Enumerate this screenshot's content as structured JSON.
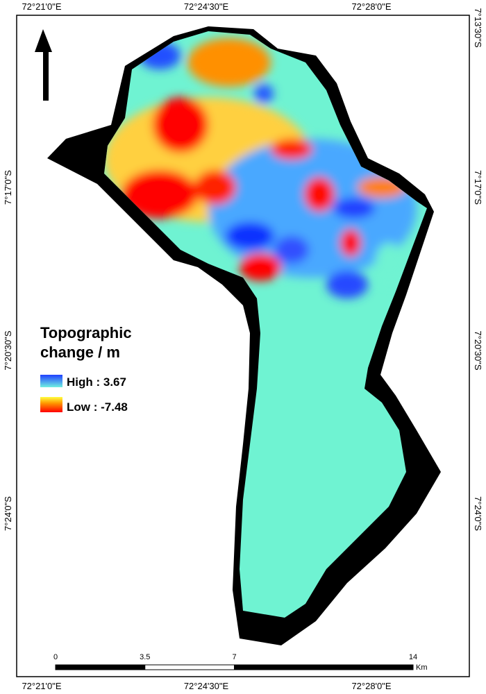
{
  "coordinates": {
    "top": [
      "72°21'0\"E",
      "72°24'30\"E",
      "72°28'0\"E"
    ],
    "bottom": [
      "72°21'0\"E",
      "72°24'30\"E",
      "72°28'0\"E"
    ],
    "left": [
      "7°17'0\"S",
      "7°20'30\"S",
      "7°24'0\"S"
    ],
    "right": [
      "7°13'30\"S",
      "7°17'0\"S",
      "7°20'30\"S",
      "7°24'0\"S"
    ]
  },
  "legend": {
    "title_lines": [
      "Topographic",
      "change / m"
    ],
    "high": "High : 3.67",
    "low": "Low : -7.48"
  },
  "scale_bar": {
    "ticks": [
      0,
      3.5,
      7,
      14
    ],
    "unit": "Km"
  }
}
